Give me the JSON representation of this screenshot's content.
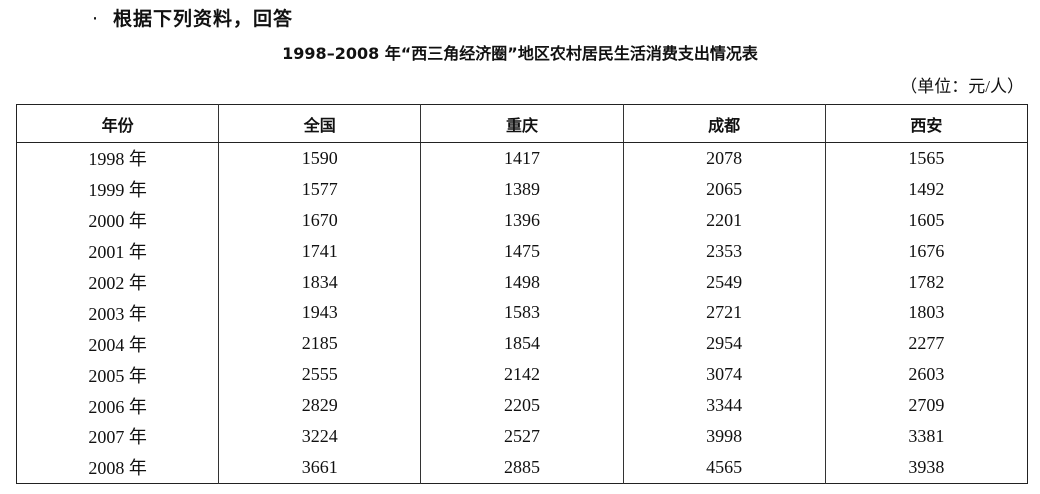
{
  "intro": "根据下列资料，回答",
  "caption": "1998–2008 年“西三角经济圈”地区农村居民生活消费支出情况表",
  "unit": "（单位：元/人）",
  "table": {
    "headers": [
      "年份",
      "全国",
      "重庆",
      "成都",
      "西安"
    ],
    "rows": [
      [
        "1998 年",
        "1590",
        "1417",
        "2078",
        "1565"
      ],
      [
        "1999 年",
        "1577",
        "1389",
        "2065",
        "1492"
      ],
      [
        "2000 年",
        "1670",
        "1396",
        "2201",
        "1605"
      ],
      [
        "2001 年",
        "1741",
        "1475",
        "2353",
        "1676"
      ],
      [
        "2002 年",
        "1834",
        "1498",
        "2549",
        "1782"
      ],
      [
        "2003 年",
        "1943",
        "1583",
        "2721",
        "1803"
      ],
      [
        "2004 年",
        "2185",
        "1854",
        "2954",
        "2277"
      ],
      [
        "2005 年",
        "2555",
        "2142",
        "3074",
        "2603"
      ],
      [
        "2006 年",
        "2829",
        "2205",
        "3344",
        "2709"
      ],
      [
        "2007 年",
        "3224",
        "2527",
        "3998",
        "3381"
      ],
      [
        "2008 年",
        "3661",
        "2885",
        "4565",
        "3938"
      ]
    ]
  }
}
